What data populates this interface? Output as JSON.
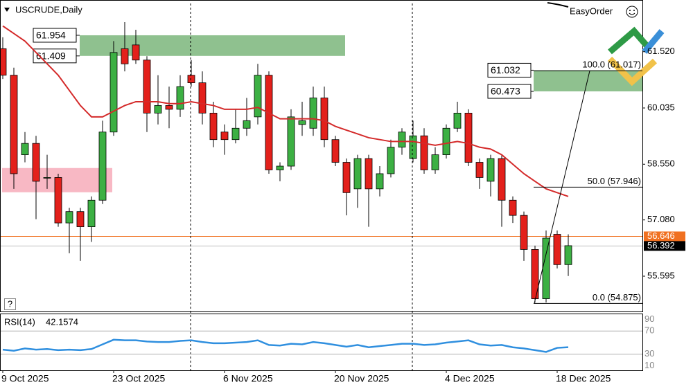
{
  "chart_data": {
    "type": "candlestick",
    "title": "USCRUDE,Daily",
    "panel_label": "EasyOrder",
    "help": "?",
    "categories": [
      "9 Oct 2025",
      null,
      null,
      null,
      null,
      null,
      null,
      null,
      null,
      null,
      "23 Oct 2025",
      null,
      null,
      null,
      null,
      null,
      null,
      null,
      null,
      null,
      "6 Nov 2025",
      null,
      null,
      null,
      null,
      null,
      null,
      null,
      null,
      null,
      "20 Nov 2025",
      null,
      null,
      null,
      null,
      null,
      null,
      null,
      null,
      null,
      "4 Dec 2025",
      null,
      null,
      null,
      null,
      null,
      null,
      null,
      null,
      null,
      "18 Dec 2025",
      null
    ],
    "open": [
      61.6,
      60.9,
      58.8,
      59.1,
      58.2,
      58.2,
      57.0,
      57.3,
      56.9,
      57.6,
      59.4,
      61.6,
      61.7,
      61.3,
      59.9,
      60.1,
      60.0,
      60.9,
      60.7,
      59.9,
      59.4,
      59.2,
      59.5,
      59.8,
      60.9,
      58.4,
      58.5,
      59.6,
      59.5,
      60.3,
      59.2,
      58.6,
      57.9,
      58.7,
      57.9,
      58.3,
      59.0,
      58.7,
      59.3,
      58.4,
      58.8,
      59.5,
      59.9,
      58.6,
      58.1,
      58.7,
      57.6,
      57.2,
      56.3,
      55.0,
      56.7,
      55.9
    ],
    "high": [
      61.9,
      61.1,
      59.4,
      59.3,
      58.8,
      58.3,
      57.4,
      57.4,
      57.7,
      59.7,
      61.8,
      62.3,
      62.1,
      61.4,
      60.9,
      60.6,
      60.9,
      61.3,
      61.0,
      60.2,
      59.6,
      60.0,
      60.3,
      61.2,
      61.0,
      58.6,
      60.0,
      60.2,
      60.6,
      60.6,
      59.3,
      58.7,
      58.8,
      58.8,
      58.5,
      59.2,
      59.5,
      59.7,
      59.5,
      59.0,
      59.6,
      60.2,
      60.0,
      58.7,
      58.8,
      58.8,
      57.7,
      57.3,
      56.4,
      56.8,
      56.8,
      56.7
    ],
    "low": [
      60.8,
      57.9,
      58.6,
      57.1,
      57.9,
      56.9,
      56.2,
      56.0,
      56.5,
      57.5,
      59.3,
      61.0,
      61.2,
      59.4,
      59.6,
      59.5,
      59.8,
      60.6,
      59.6,
      59.0,
      58.8,
      59.1,
      59.3,
      59.6,
      58.3,
      58.1,
      58.4,
      59.3,
      59.3,
      59.0,
      58.5,
      57.2,
      57.4,
      56.9,
      57.7,
      58.2,
      58.8,
      58.6,
      58.3,
      58.3,
      58.7,
      59.4,
      58.5,
      57.9,
      57.7,
      56.9,
      57.0,
      56.0,
      54.9,
      54.9,
      55.8,
      55.6
    ],
    "close": [
      60.9,
      58.3,
      59.1,
      58.1,
      58.2,
      57.0,
      57.3,
      56.9,
      57.6,
      59.4,
      61.5,
      61.2,
      61.3,
      59.9,
      60.1,
      60.0,
      60.6,
      60.7,
      59.9,
      59.2,
      59.2,
      59.5,
      59.7,
      60.9,
      58.4,
      58.5,
      59.8,
      59.7,
      60.3,
      59.2,
      58.6,
      57.8,
      58.7,
      57.9,
      58.3,
      59.0,
      59.4,
      59.3,
      58.4,
      58.8,
      59.5,
      59.9,
      58.6,
      58.2,
      58.7,
      57.6,
      57.2,
      56.3,
      55.0,
      56.6,
      55.9,
      56.4
    ],
    "up_color": "#3cb043",
    "down_color": "#e3201b",
    "moving_average": {
      "color": "#d42a2a",
      "values": [
        62.2,
        62.0,
        61.8,
        61.5,
        61.2,
        60.9,
        60.5,
        60.1,
        59.8,
        59.8,
        59.95,
        60.1,
        60.2,
        60.2,
        60.2,
        60.15,
        60.15,
        60.2,
        60.15,
        60.1,
        60.0,
        60.0,
        60.0,
        60.05,
        59.9,
        59.75,
        59.75,
        59.75,
        59.75,
        59.7,
        59.55,
        59.45,
        59.35,
        59.25,
        59.2,
        59.15,
        59.15,
        59.15,
        59.1,
        59.05,
        59.1,
        59.15,
        59.1,
        59.0,
        58.95,
        58.8,
        58.55,
        58.3,
        58.1,
        57.9,
        57.8,
        57.7
      ]
    },
    "ylim": [
      54.663,
      62.794
    ],
    "yticks": [
      55.595,
      {
        "value": 57.08,
        "label": "57.080"
      },
      {
        "value": 58.55,
        "label": "58.550"
      },
      60.035,
      {
        "value": 61.52,
        "label": "61.520"
      }
    ],
    "zones": [
      {
        "top": 61.954,
        "bottom": 61.409,
        "color": "#8fc18f"
      },
      {
        "top": 61.032,
        "bottom": 60.473,
        "color": "#8fc18f"
      },
      {
        "top": 58.45,
        "bottom": 57.81,
        "color": "#f8b8c4"
      }
    ],
    "fibonacci": [
      {
        "value": 61.017,
        "label": "100.0 (61.017)"
      },
      {
        "value": 57.946,
        "label": "50.0 (57.946)"
      },
      {
        "value": 54.875,
        "label": "0.0 (54.875)"
      }
    ],
    "price_lines": [
      {
        "value": 56.646,
        "color": "#f07020"
      },
      {
        "value": 56.392,
        "color": "#000000"
      }
    ],
    "rsi": {
      "name": "RSI(14)",
      "color": "#2f8fdf",
      "values": [
        38,
        36,
        40,
        38,
        39,
        37,
        38,
        37,
        39,
        47,
        55,
        54,
        54,
        52,
        51,
        51,
        53,
        54,
        51,
        49,
        49,
        50,
        51,
        54,
        46,
        45,
        48,
        47,
        51,
        49,
        46,
        43,
        46,
        42,
        44,
        46,
        48,
        48,
        46,
        47,
        50,
        52,
        54,
        47,
        45,
        46,
        42,
        40,
        37,
        34,
        41,
        42.1574
      ],
      "ylim": [
        0,
        100
      ],
      "yticks": [
        90,
        70,
        30,
        10
      ],
      "levels": [
        70,
        30
      ]
    }
  }
}
